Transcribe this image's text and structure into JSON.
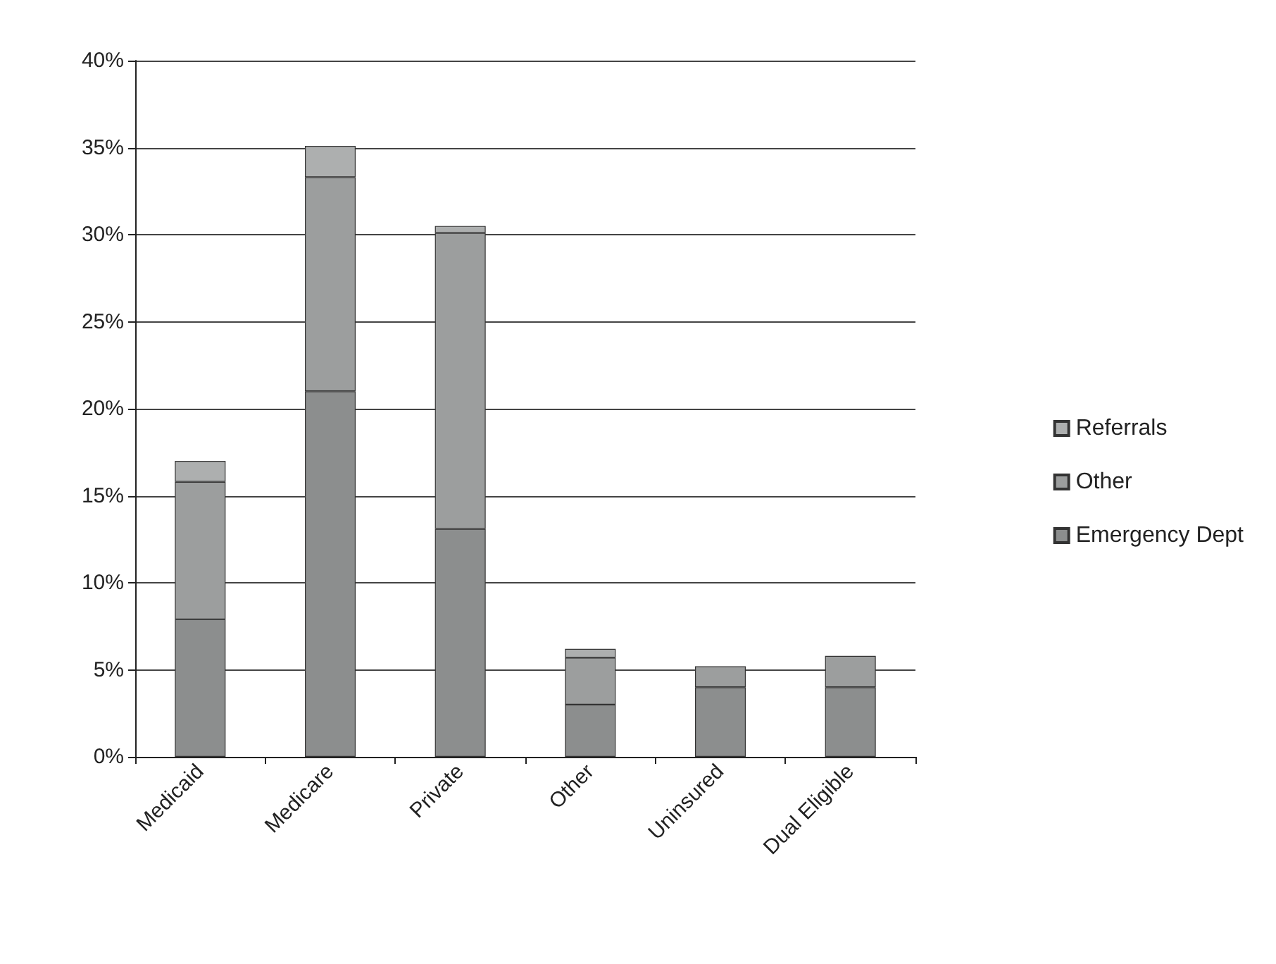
{
  "chart_data": {
    "type": "bar",
    "stacked": true,
    "categories": [
      "Medicaid",
      "Medicare",
      "Private",
      "Other",
      "Uninsured",
      "Dual Eligible"
    ],
    "series": [
      {
        "name": "Emergency Dept",
        "color": "#8c8e8e",
        "values": [
          7.9,
          21.0,
          13.1,
          3.0,
          4.0,
          4.0
        ]
      },
      {
        "name": "Other",
        "color": "#9c9e9e",
        "values": [
          7.9,
          12.3,
          17.0,
          2.7,
          1.2,
          1.8
        ]
      },
      {
        "name": "Referrals",
        "color": "#adafaf",
        "values": [
          1.2,
          1.8,
          0.4,
          0.5,
          null,
          null
        ]
      }
    ],
    "ylim": [
      0,
      40
    ],
    "yticks": [
      {
        "value": 0,
        "label": "0%"
      },
      {
        "value": 5,
        "label": "5%"
      },
      {
        "value": 10,
        "label": "10%"
      },
      {
        "value": 15,
        "label": "15%"
      },
      {
        "value": 20,
        "label": "20%"
      },
      {
        "value": 25,
        "label": "25%"
      },
      {
        "value": 30,
        "label": "30%"
      },
      {
        "value": 35,
        "label": "35%"
      },
      {
        "value": 40,
        "label": "40%"
      }
    ],
    "grid": "y",
    "legend": "right"
  }
}
